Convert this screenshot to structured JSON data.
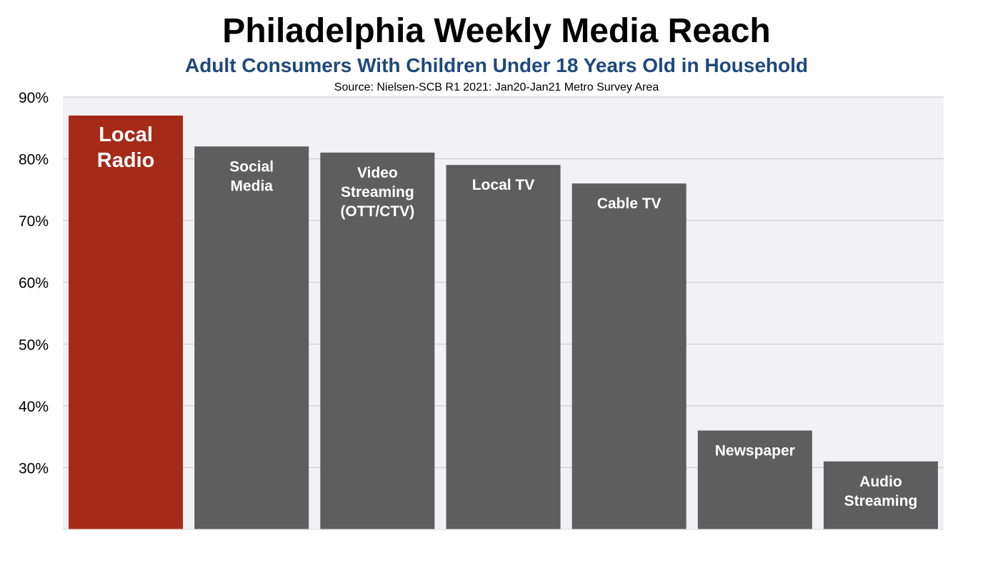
{
  "header": {
    "title": "Philadelphia Weekly Media Reach",
    "subtitle": "Adult Consumers With Children Under 18 Years Old in Household",
    "source": "Source: Nielsen-SCB R1 2021: Jan20-Jan21 Metro Survey Area"
  },
  "chart_data": {
    "type": "bar",
    "title": "Philadelphia Weekly Media Reach",
    "subtitle": "Adult Consumers With Children Under 18 Years Old in Household",
    "xlabel": "",
    "ylabel": "",
    "ylim": [
      20,
      90
    ],
    "yticks": [
      "30%",
      "40%",
      "50%",
      "60%",
      "70%",
      "80%",
      "90%"
    ],
    "grid": true,
    "legend": "none",
    "categories": [
      "Local Radio",
      "Social Media",
      "Video Streaming (OTT/CTV)",
      "Local TV",
      "Cable TV",
      "Newspaper",
      "Audio Streaming"
    ],
    "label_lines": [
      [
        "Local",
        "Radio"
      ],
      [
        "Social",
        "Media"
      ],
      [
        "Video",
        "Streaming",
        "(OTT/CTV)"
      ],
      [
        "Local TV"
      ],
      [
        "Cable TV"
      ],
      [
        "Newspaper"
      ],
      [
        "Audio",
        "Streaming"
      ]
    ],
    "values": [
      87,
      82,
      81,
      79,
      76,
      36,
      31
    ],
    "highlight_index": 0,
    "colors": {
      "highlight": "#a52a17",
      "bar": "#5e5e5e",
      "plot_bg": "#f2f2f4",
      "grid": "#c8c8c8"
    }
  }
}
